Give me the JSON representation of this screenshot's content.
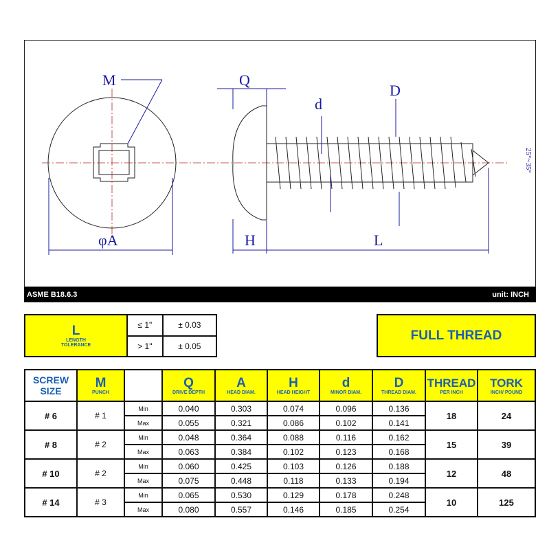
{
  "drawing": {
    "labels": {
      "M": "M",
      "Q": "Q",
      "d": "d",
      "D": "D",
      "A": "φA",
      "H": "H",
      "L": "L",
      "angle": "25°~35°"
    }
  },
  "footer": {
    "standard": "ASME B18.6.3",
    "unit": "unit: INCH"
  },
  "tolerance": {
    "title": "L",
    "subtitle1": "LENGTH",
    "subtitle2": "TOLERANCE",
    "rows": [
      {
        "cond": "≤ 1\"",
        "value": "± 0.03"
      },
      {
        "cond": "> 1\"",
        "value": "± 0.05"
      }
    ]
  },
  "thread_type": "FULL THREAD",
  "table": {
    "headers": {
      "size": {
        "l1": "SCREW",
        "l2": "SIZE"
      },
      "m": {
        "title": "M",
        "sub": "PUNCH"
      },
      "q": {
        "title": "Q",
        "sub": "DRIVE DEPTH"
      },
      "a": {
        "title": "A",
        "sub": "HEAD DIAM."
      },
      "h": {
        "title": "H",
        "sub": "HEAD HEIGHT"
      },
      "d": {
        "title": "d",
        "sub": "MINOR DIAM."
      },
      "D": {
        "title": "D",
        "sub": "THREAD DIAM."
      },
      "thread": {
        "title": "THREAD",
        "sub": "PER INCH"
      },
      "tork": {
        "title": "TORK",
        "sub": "INCH/ POUND"
      }
    },
    "min_label": "Min",
    "max_label": "Max",
    "rows": [
      {
        "size": "# 6",
        "punch": "# 1",
        "min": [
          "0.040",
          "0.303",
          "0.074",
          "0.096",
          "0.136"
        ],
        "max": [
          "0.055",
          "0.321",
          "0.086",
          "0.102",
          "0.141"
        ],
        "thread": "18",
        "tork": "24"
      },
      {
        "size": "# 8",
        "punch": "# 2",
        "min": [
          "0.048",
          "0.364",
          "0.088",
          "0.116",
          "0.162"
        ],
        "max": [
          "0.063",
          "0.384",
          "0.102",
          "0.123",
          "0.168"
        ],
        "thread": "15",
        "tork": "39"
      },
      {
        "size": "# 10",
        "punch": "# 2",
        "min": [
          "0.060",
          "0.425",
          "0.103",
          "0.126",
          "0.188"
        ],
        "max": [
          "0.075",
          "0.448",
          "0.118",
          "0.133",
          "0.194"
        ],
        "thread": "12",
        "tork": "48"
      },
      {
        "size": "# 14",
        "punch": "# 3",
        "min": [
          "0.065",
          "0.530",
          "0.129",
          "0.178",
          "0.248"
        ],
        "max": [
          "0.080",
          "0.557",
          "0.146",
          "0.185",
          "0.254"
        ],
        "thread": "10",
        "tork": "125"
      }
    ]
  }
}
